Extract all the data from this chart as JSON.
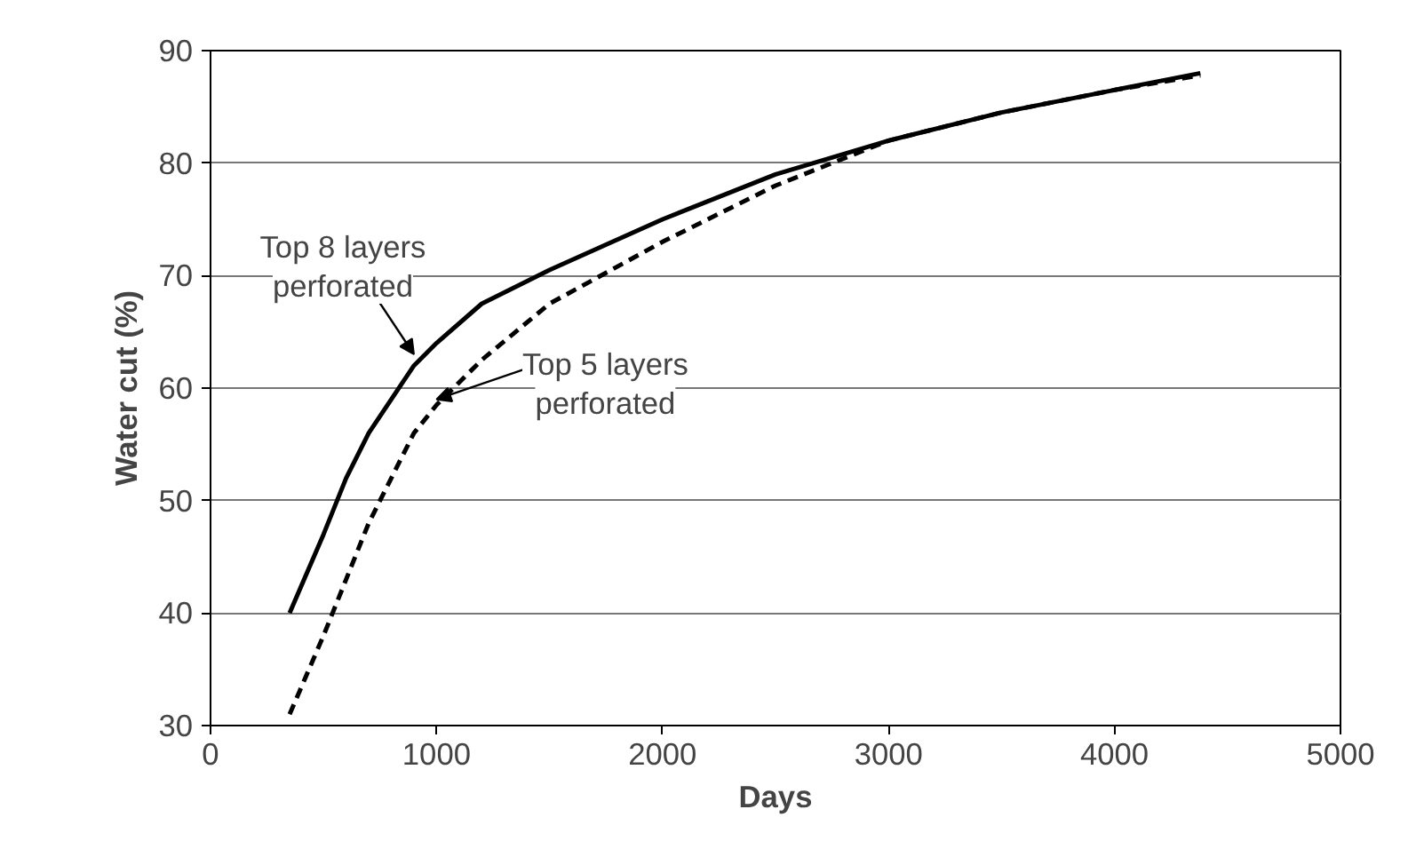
{
  "chart_data": {
    "type": "line",
    "xlabel": "Days",
    "ylabel": "Water cut (%)",
    "xlim": [
      0,
      5000
    ],
    "xticks": [
      0,
      1000,
      2000,
      3000,
      4000,
      5000
    ],
    "ylim": [
      30,
      90
    ],
    "yticks": [
      30,
      40,
      50,
      60,
      70,
      80,
      90
    ],
    "grid": "y",
    "marker": "none",
    "series": [
      {
        "color": "#000000",
        "line_style": "solid",
        "x": [
          350,
          500,
          600,
          700,
          800,
          900,
          1000,
          1200,
          1500,
          2000,
          2500,
          3000,
          3500,
          4000,
          4380
        ],
        "values": [
          40,
          47,
          52,
          56,
          59,
          62,
          64,
          67.5,
          70.5,
          75,
          79,
          82,
          84.5,
          86.5,
          88
        ]
      },
      {
        "color": "#000000",
        "line_style": "dashed",
        "x": [
          350,
          500,
          600,
          700,
          800,
          900,
          1000,
          1200,
          1500,
          2000,
          2500,
          3000,
          3500,
          4000,
          4380
        ],
        "values": [
          31,
          38,
          43,
          48,
          52,
          56,
          58.5,
          62.5,
          67.5,
          73,
          78,
          82,
          84.5,
          86.5,
          87.8
        ]
      }
    ],
    "annotations": [
      {
        "text": "Top 8 layers\nperforated",
        "x": 900,
        "y": 63
      },
      {
        "text": "Top 5 layers\nperforated",
        "x": 1000,
        "y": 59
      }
    ]
  }
}
